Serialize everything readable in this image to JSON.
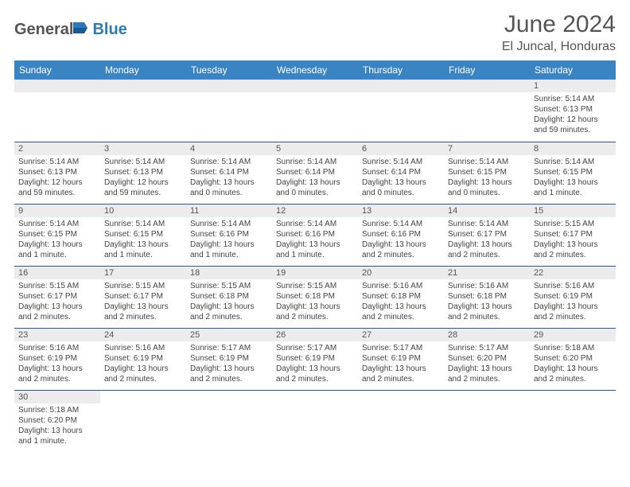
{
  "logo": {
    "general": "General",
    "blue": "Blue"
  },
  "title": "June 2024",
  "location": "El Juncal, Honduras",
  "colors": {
    "header_bg": "#3b84c4",
    "header_text": "#ffffff",
    "daynum_bg": "#ececec",
    "border": "#2a5a8a",
    "text": "#444444",
    "title_text": "#555555",
    "logo_gray": "#555555",
    "logo_blue": "#2a7ab8"
  },
  "days_of_week": [
    "Sunday",
    "Monday",
    "Tuesday",
    "Wednesday",
    "Thursday",
    "Friday",
    "Saturday"
  ],
  "first_weekday_index": 6,
  "days": [
    {
      "n": 1,
      "sr": "Sunrise: 5:14 AM",
      "ss": "Sunset: 6:13 PM",
      "dl": "Daylight: 12 hours and 59 minutes."
    },
    {
      "n": 2,
      "sr": "Sunrise: 5:14 AM",
      "ss": "Sunset: 6:13 PM",
      "dl": "Daylight: 12 hours and 59 minutes."
    },
    {
      "n": 3,
      "sr": "Sunrise: 5:14 AM",
      "ss": "Sunset: 6:13 PM",
      "dl": "Daylight: 12 hours and 59 minutes."
    },
    {
      "n": 4,
      "sr": "Sunrise: 5:14 AM",
      "ss": "Sunset: 6:14 PM",
      "dl": "Daylight: 13 hours and 0 minutes."
    },
    {
      "n": 5,
      "sr": "Sunrise: 5:14 AM",
      "ss": "Sunset: 6:14 PM",
      "dl": "Daylight: 13 hours and 0 minutes."
    },
    {
      "n": 6,
      "sr": "Sunrise: 5:14 AM",
      "ss": "Sunset: 6:14 PM",
      "dl": "Daylight: 13 hours and 0 minutes."
    },
    {
      "n": 7,
      "sr": "Sunrise: 5:14 AM",
      "ss": "Sunset: 6:15 PM",
      "dl": "Daylight: 13 hours and 0 minutes."
    },
    {
      "n": 8,
      "sr": "Sunrise: 5:14 AM",
      "ss": "Sunset: 6:15 PM",
      "dl": "Daylight: 13 hours and 1 minute."
    },
    {
      "n": 9,
      "sr": "Sunrise: 5:14 AM",
      "ss": "Sunset: 6:15 PM",
      "dl": "Daylight: 13 hours and 1 minute."
    },
    {
      "n": 10,
      "sr": "Sunrise: 5:14 AM",
      "ss": "Sunset: 6:15 PM",
      "dl": "Daylight: 13 hours and 1 minute."
    },
    {
      "n": 11,
      "sr": "Sunrise: 5:14 AM",
      "ss": "Sunset: 6:16 PM",
      "dl": "Daylight: 13 hours and 1 minute."
    },
    {
      "n": 12,
      "sr": "Sunrise: 5:14 AM",
      "ss": "Sunset: 6:16 PM",
      "dl": "Daylight: 13 hours and 1 minute."
    },
    {
      "n": 13,
      "sr": "Sunrise: 5:14 AM",
      "ss": "Sunset: 6:16 PM",
      "dl": "Daylight: 13 hours and 2 minutes."
    },
    {
      "n": 14,
      "sr": "Sunrise: 5:14 AM",
      "ss": "Sunset: 6:17 PM",
      "dl": "Daylight: 13 hours and 2 minutes."
    },
    {
      "n": 15,
      "sr": "Sunrise: 5:15 AM",
      "ss": "Sunset: 6:17 PM",
      "dl": "Daylight: 13 hours and 2 minutes."
    },
    {
      "n": 16,
      "sr": "Sunrise: 5:15 AM",
      "ss": "Sunset: 6:17 PM",
      "dl": "Daylight: 13 hours and 2 minutes."
    },
    {
      "n": 17,
      "sr": "Sunrise: 5:15 AM",
      "ss": "Sunset: 6:17 PM",
      "dl": "Daylight: 13 hours and 2 minutes."
    },
    {
      "n": 18,
      "sr": "Sunrise: 5:15 AM",
      "ss": "Sunset: 6:18 PM",
      "dl": "Daylight: 13 hours and 2 minutes."
    },
    {
      "n": 19,
      "sr": "Sunrise: 5:15 AM",
      "ss": "Sunset: 6:18 PM",
      "dl": "Daylight: 13 hours and 2 minutes."
    },
    {
      "n": 20,
      "sr": "Sunrise: 5:16 AM",
      "ss": "Sunset: 6:18 PM",
      "dl": "Daylight: 13 hours and 2 minutes."
    },
    {
      "n": 21,
      "sr": "Sunrise: 5:16 AM",
      "ss": "Sunset: 6:18 PM",
      "dl": "Daylight: 13 hours and 2 minutes."
    },
    {
      "n": 22,
      "sr": "Sunrise: 5:16 AM",
      "ss": "Sunset: 6:19 PM",
      "dl": "Daylight: 13 hours and 2 minutes."
    },
    {
      "n": 23,
      "sr": "Sunrise: 5:16 AM",
      "ss": "Sunset: 6:19 PM",
      "dl": "Daylight: 13 hours and 2 minutes."
    },
    {
      "n": 24,
      "sr": "Sunrise: 5:16 AM",
      "ss": "Sunset: 6:19 PM",
      "dl": "Daylight: 13 hours and 2 minutes."
    },
    {
      "n": 25,
      "sr": "Sunrise: 5:17 AM",
      "ss": "Sunset: 6:19 PM",
      "dl": "Daylight: 13 hours and 2 minutes."
    },
    {
      "n": 26,
      "sr": "Sunrise: 5:17 AM",
      "ss": "Sunset: 6:19 PM",
      "dl": "Daylight: 13 hours and 2 minutes."
    },
    {
      "n": 27,
      "sr": "Sunrise: 5:17 AM",
      "ss": "Sunset: 6:19 PM",
      "dl": "Daylight: 13 hours and 2 minutes."
    },
    {
      "n": 28,
      "sr": "Sunrise: 5:17 AM",
      "ss": "Sunset: 6:20 PM",
      "dl": "Daylight: 13 hours and 2 minutes."
    },
    {
      "n": 29,
      "sr": "Sunrise: 5:18 AM",
      "ss": "Sunset: 6:20 PM",
      "dl": "Daylight: 13 hours and 2 minutes."
    },
    {
      "n": 30,
      "sr": "Sunrise: 5:18 AM",
      "ss": "Sunset: 6:20 PM",
      "dl": "Daylight: 13 hours and 1 minute."
    }
  ]
}
